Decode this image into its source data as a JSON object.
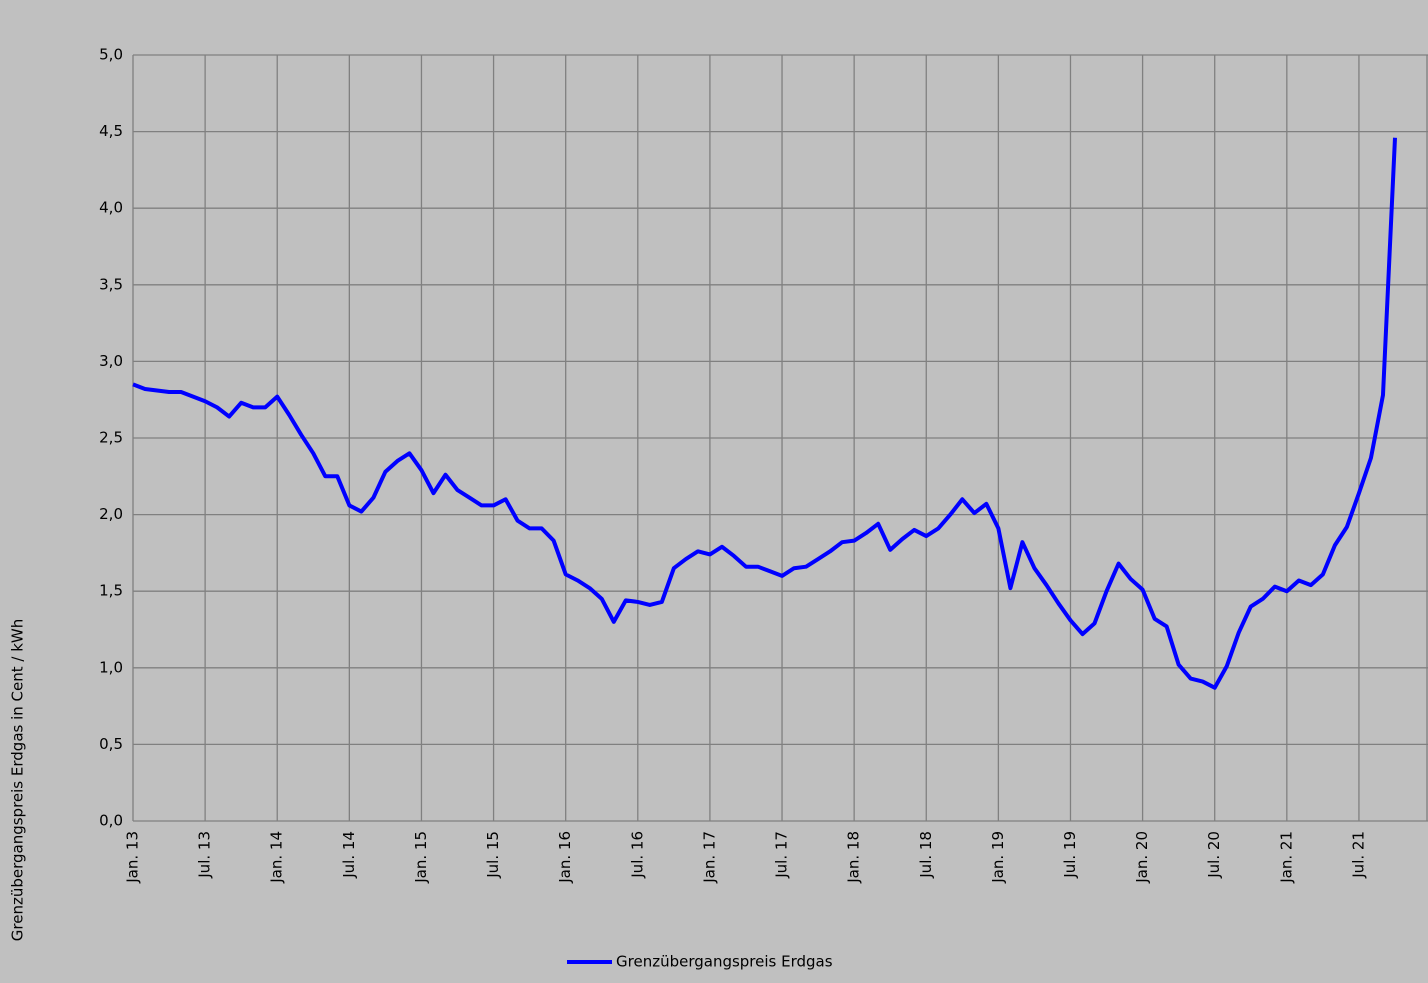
{
  "chart_data": {
    "type": "line",
    "y_label": "Grenzübergangspreis Erdgas in Cent / kWh",
    "categories": [
      "Jan. 13",
      null,
      null,
      null,
      null,
      null,
      "Jul. 13",
      null,
      null,
      null,
      null,
      null,
      "Jan. 14",
      null,
      null,
      null,
      null,
      null,
      "Jul. 14",
      null,
      null,
      null,
      null,
      null,
      "Jan. 15",
      null,
      null,
      null,
      null,
      null,
      "Jul. 15",
      null,
      null,
      null,
      null,
      null,
      "Jan. 16",
      null,
      null,
      null,
      null,
      null,
      "Jul. 16",
      null,
      null,
      null,
      null,
      null,
      "Jan. 17",
      null,
      null,
      null,
      null,
      null,
      "Jul. 17",
      null,
      null,
      null,
      null,
      null,
      "Jan. 18",
      null,
      null,
      null,
      null,
      null,
      "Jul. 18",
      null,
      null,
      null,
      null,
      null,
      "Jan. 19",
      null,
      null,
      null,
      null,
      null,
      "Jul. 19",
      null,
      null,
      null,
      null,
      null,
      "Jan. 20",
      null,
      null,
      null,
      null,
      null,
      "Jul. 20",
      null,
      null,
      null,
      null,
      null,
      "Jan. 21",
      null,
      null,
      null,
      null,
      null,
      "Jul. 21",
      null,
      null,
      null
    ],
    "series": [
      {
        "name": "Grenzübergangspreis Erdgas",
        "color": "#0000ff",
        "values": [
          2.85,
          2.82,
          2.81,
          2.8,
          2.8,
          2.77,
          2.74,
          2.7,
          2.64,
          2.73,
          2.7,
          2.7,
          2.77,
          2.65,
          2.52,
          2.4,
          2.25,
          2.25,
          2.06,
          2.02,
          2.11,
          2.28,
          2.35,
          2.4,
          2.29,
          2.14,
          2.26,
          2.16,
          2.11,
          2.06,
          2.06,
          2.1,
          1.96,
          1.91,
          1.91,
          1.83,
          1.61,
          1.57,
          1.52,
          1.45,
          1.3,
          1.44,
          1.43,
          1.41,
          1.43,
          1.65,
          1.71,
          1.76,
          1.74,
          1.79,
          1.73,
          1.66,
          1.66,
          1.63,
          1.6,
          1.65,
          1.66,
          1.71,
          1.76,
          1.82,
          1.83,
          1.88,
          1.94,
          1.77,
          1.84,
          1.9,
          1.86,
          1.91,
          2.0,
          2.1,
          2.01,
          2.07,
          1.91,
          1.52,
          1.82,
          1.65,
          1.54,
          1.42,
          1.31,
          1.22,
          1.29,
          1.5,
          1.68,
          1.58,
          1.51,
          1.32,
          1.27,
          1.02,
          0.93,
          0.91,
          0.87,
          1.01,
          1.23,
          1.4,
          1.45,
          1.53,
          1.5,
          1.57,
          1.54,
          1.61,
          1.8,
          1.92,
          2.14,
          2.37,
          2.78,
          4.46
        ]
      }
    ],
    "ylim": [
      0,
      5
    ],
    "yticks": [
      {
        "value": 0,
        "label": "0,0"
      },
      {
        "value": 0.5,
        "label": "0,5"
      },
      {
        "value": 1,
        "label": "1,0"
      },
      {
        "value": 1.5,
        "label": "1,5"
      },
      {
        "value": 2,
        "label": "2,0"
      },
      {
        "value": 2.5,
        "label": "2,5"
      },
      {
        "value": 3,
        "label": "3,0"
      },
      {
        "value": 3.5,
        "label": "3,5"
      },
      {
        "value": 4,
        "label": "4,0"
      },
      {
        "value": 4.5,
        "label": "4,5"
      },
      {
        "value": 5,
        "label": "5,0"
      }
    ],
    "grid": true
  }
}
